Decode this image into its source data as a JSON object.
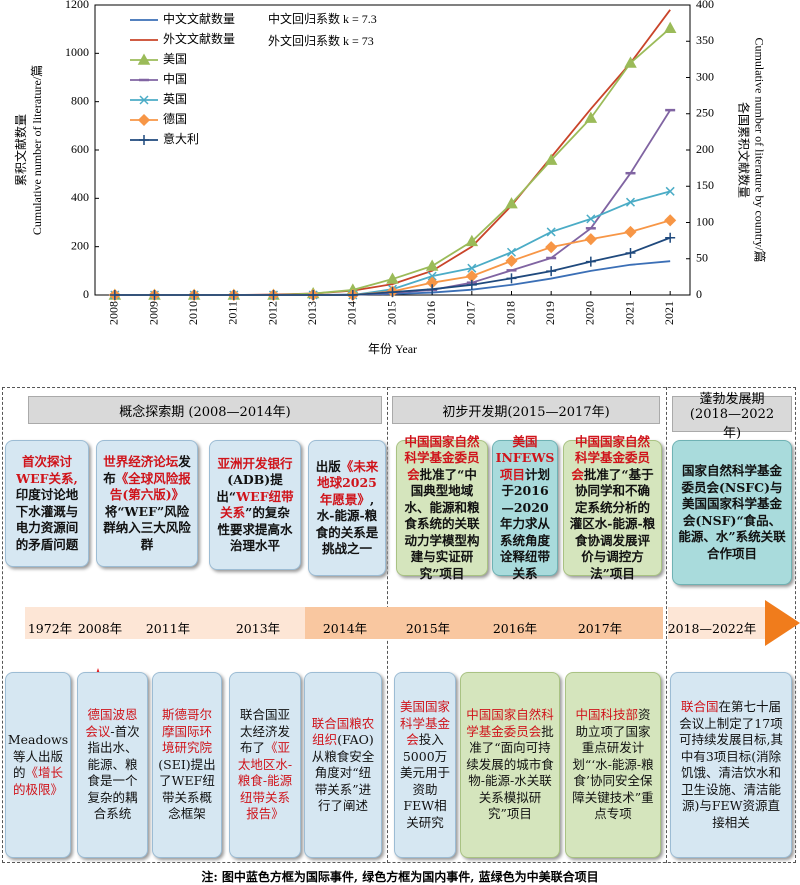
{
  "chart_data": {
    "type": "line",
    "categories": [
      "2008",
      "2009",
      "2010",
      "2011",
      "2012",
      "2013",
      "2014",
      "2015",
      "2016",
      "2017",
      "2018",
      "2019",
      "2020",
      "2021",
      "2021"
    ],
    "ylim": [
      0,
      1200
    ],
    "yticks": [
      0,
      200,
      400,
      600,
      800,
      1000,
      1200
    ],
    "y2lim": [
      0,
      400
    ],
    "y2ticks": [
      0,
      50,
      100,
      150,
      200,
      250,
      300,
      350,
      400
    ],
    "y_label": [
      "累积文献数量",
      "Cumulative number of literature/篇"
    ],
    "y2_label": [
      "各国累积文献数量",
      "Cumulative number of literature by country/篇"
    ],
    "x_label": "年份 Year",
    "annotations": [
      "中文回归系数 k = 7.3",
      "外文回归系数 k = 73"
    ],
    "series": [
      {
        "name": "中文文献数量",
        "color": "#3b6fb6",
        "values": [
          0,
          0,
          0,
          0,
          0,
          0,
          2,
          4,
          10,
          22,
          42,
          68,
          100,
          125,
          140
        ]
      },
      {
        "name": "外文文献数量",
        "color": "#c9442a",
        "values": [
          0,
          0,
          0,
          0,
          2,
          6,
          18,
          45,
          100,
          200,
          370,
          570,
          770,
          960,
          1180
        ]
      },
      {
        "name": "美国",
        "color": "#9bbb59",
        "marker": "triangle",
        "axis": "y2",
        "values": [
          0,
          0,
          0,
          0,
          0,
          2,
          7,
          22,
          40,
          74,
          126,
          186,
          244,
          320,
          368
        ]
      },
      {
        "name": "中国",
        "color": "#8064a2",
        "marker": "dash",
        "axis": "y2",
        "values": [
          0,
          0,
          0,
          0,
          0,
          0,
          0,
          3,
          7,
          17,
          34,
          51,
          92,
          168,
          255
        ]
      },
      {
        "name": "英国",
        "color": "#4bacc6",
        "marker": "x",
        "axis": "y2",
        "values": [
          0,
          0,
          0,
          0,
          0,
          0,
          0,
          8,
          26,
          37,
          59,
          87,
          105,
          128,
          143
        ]
      },
      {
        "name": "德国",
        "color": "#f79646",
        "marker": "diamond",
        "axis": "y2",
        "values": [
          0,
          0,
          0,
          0,
          0,
          0,
          0,
          5,
          17,
          26,
          47,
          66,
          77,
          87,
          103
        ]
      },
      {
        "name": "意大利",
        "color": "#1f497d",
        "marker": "plus",
        "axis": "y2",
        "values": [
          0,
          0,
          0,
          0,
          0,
          0,
          0,
          4,
          8,
          14,
          23,
          33,
          46,
          58,
          79
        ]
      }
    ]
  },
  "timeline": {
    "phases": [
      "概念探索期 (2008—2014年)",
      "初步开发期(2015—2017年)",
      "蓬勃发展期 (2018—2022年)"
    ],
    "years": [
      "1972年",
      "2008年",
      "2011年",
      "2013年",
      "2014年",
      "2015年",
      "2016年",
      "2017年",
      "2018—2022年"
    ],
    "top": [
      {
        "kind": "blue",
        "parts": [
          {
            "t": "首次探讨WEF关系,",
            "red": true
          },
          {
            "t": "印度讨论地下水灌溉与电力资源间的矛盾问题"
          }
        ]
      },
      {
        "kind": "blue",
        "parts": [
          {
            "t": "世界经济论坛",
            "red": true
          },
          {
            "t": "发布"
          },
          {
            "t": "《全球风险报告(第六版)》",
            "red": true
          },
          {
            "t": "将“WEF”风险群纳入三大风险群"
          }
        ]
      },
      {
        "kind": "blue",
        "parts": [
          {
            "t": "亚洲开发银行",
            "red": true
          },
          {
            "t": "(ADB)提出“"
          },
          {
            "t": "WEF纽带关系",
            "red": true
          },
          {
            "t": "”的复杂性要求提高水治理水平"
          }
        ]
      },
      {
        "kind": "blue",
        "parts": [
          {
            "t": "出版"
          },
          {
            "t": "《未来地球2025年愿景》",
            "red": true
          },
          {
            "t": ",水-能源-粮食的关系是挑战之一"
          }
        ]
      },
      {
        "kind": "green",
        "parts": [
          {
            "t": "中国国家自然科学基金委员会",
            "red": true
          },
          {
            "t": "批准了“中国典型地域水、能源和粮食系统的关联动力学模型构建与实证研究”项目"
          }
        ]
      },
      {
        "kind": "teal",
        "parts": [
          {
            "t": "美国INFEWS项目",
            "red": true
          },
          {
            "t": "计划于2016—2020年力求从系统角度诠释纽带关系"
          }
        ]
      },
      {
        "kind": "green",
        "parts": [
          {
            "t": "中国国家自然科学基金委员会",
            "red": true
          },
          {
            "t": "批准了“基于协同学和不确定系统分析的灌区水-能源-粮食协调发展评价与调控方法”项目"
          }
        ]
      },
      {
        "kind": "teal",
        "parts": [
          {
            "t": "国家自然科学基金委员会(NSFC)与美国国家科学基金会(NSF)“食品、能源、水”系统关联合作项目"
          }
        ]
      }
    ],
    "bottom": [
      {
        "kind": "blue",
        "parts": [
          {
            "t": "Meadows等人出版的"
          },
          {
            "t": "《增长的极限》",
            "red": true
          }
        ]
      },
      {
        "kind": "blue",
        "parts": [
          {
            "t": "德国波恩会议",
            "red": true
          },
          {
            "t": "-首次指出水、能源、粮食是一个复杂的耦合系统"
          }
        ]
      },
      {
        "kind": "blue",
        "parts": [
          {
            "t": "斯德哥尔摩国际环境研究院",
            "red": true
          },
          {
            "t": "(SEI)提出了WEF纽带关系概念框架"
          }
        ]
      },
      {
        "kind": "blue",
        "parts": [
          {
            "t": "联合国亚太经济发布了"
          },
          {
            "t": "《亚太地区水-粮食-能源纽带关系报告》",
            "red": true
          }
        ]
      },
      {
        "kind": "blue",
        "parts": [
          {
            "t": "联合国粮农组织",
            "red": true
          },
          {
            "t": "(FAO)从粮食安全角度对“纽带关系”进行了阐述"
          }
        ]
      },
      {
        "kind": "blue",
        "parts": [
          {
            "t": "美国国家科学基金会",
            "red": true
          },
          {
            "t": "投入5000万美元用于资助FEW相关研究"
          }
        ]
      },
      {
        "kind": "green",
        "parts": [
          {
            "t": "中国国家自然科学基金委员会",
            "red": true
          },
          {
            "t": "批准了“面向可持续发展的城市食物-能源-水关联关系模拟研究”项目"
          }
        ]
      },
      {
        "kind": "green",
        "parts": [
          {
            "t": "中国科技部",
            "red": true
          },
          {
            "t": "资助立项了国家重点研发计划“‘水-能源-粮食’协同安全保障关键技术”重点专项"
          }
        ]
      },
      {
        "kind": "blue",
        "parts": [
          {
            "t": "联合国",
            "red": true
          },
          {
            "t": "在第七十届会议上制定了17项可持续发展目标,其中有3项目标(消除饥饿、清洁饮水和卫生设施、清洁能源)与FEW资源直接相关"
          }
        ]
      }
    ],
    "note": "注: 图中蓝色方框为国际事件, 绿色方框为国内事件, 蓝绿色为中美联合项目"
  }
}
